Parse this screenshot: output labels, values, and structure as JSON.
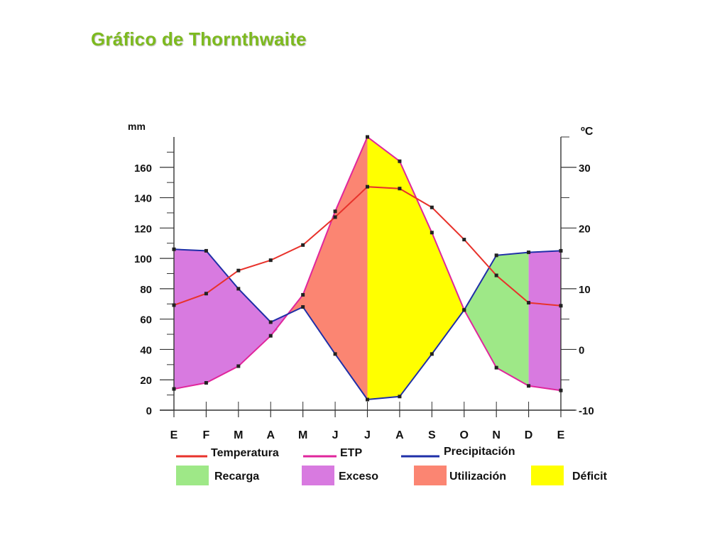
{
  "page": {
    "title": "Gráfico de Thornthwaite"
  },
  "chart_data": {
    "type": "line",
    "title": "",
    "ylabel_left": "mm",
    "ylabel_right": "ºC",
    "categories": [
      "E",
      "F",
      "M",
      "A",
      "M",
      "J",
      "J",
      "A",
      "S",
      "O",
      "N",
      "D",
      "E"
    ],
    "ylim_left": [
      0,
      180
    ],
    "ylim_right": [
      -10,
      35
    ],
    "yticks_left": [
      0,
      20,
      40,
      60,
      80,
      100,
      120,
      140,
      160
    ],
    "yticks_right": [
      -10,
      0,
      10,
      20,
      30
    ],
    "series": [
      {
        "name": "Temperatura",
        "axis": "right",
        "color": "#e8322b",
        "values": [
          7.3,
          9.2,
          13,
          14.7,
          17.2,
          21.8,
          26.8,
          26.5,
          23.4,
          18.1,
          12.2,
          7.7,
          7.2
        ]
      },
      {
        "name": "ETP",
        "axis": "left",
        "color": "#e0269c",
        "values": [
          14,
          18,
          29,
          49,
          76,
          131,
          180,
          164,
          117,
          66,
          28,
          16,
          13
        ]
      },
      {
        "name": "Precipitación",
        "axis": "left",
        "color": "#1f2fa8",
        "values": [
          106,
          105,
          80,
          58,
          68,
          37,
          7,
          9,
          37,
          66,
          102,
          104,
          105
        ]
      }
    ],
    "areas": [
      {
        "name": "Recarga",
        "color": "#9ee887"
      },
      {
        "name": "Exceso",
        "color": "#d87ae0"
      },
      {
        "name": "Utilización",
        "color": "#fb8572"
      },
      {
        "name": "Déficit",
        "color": "#ffff00"
      }
    ],
    "grid": false,
    "legend_position": "bottom"
  }
}
